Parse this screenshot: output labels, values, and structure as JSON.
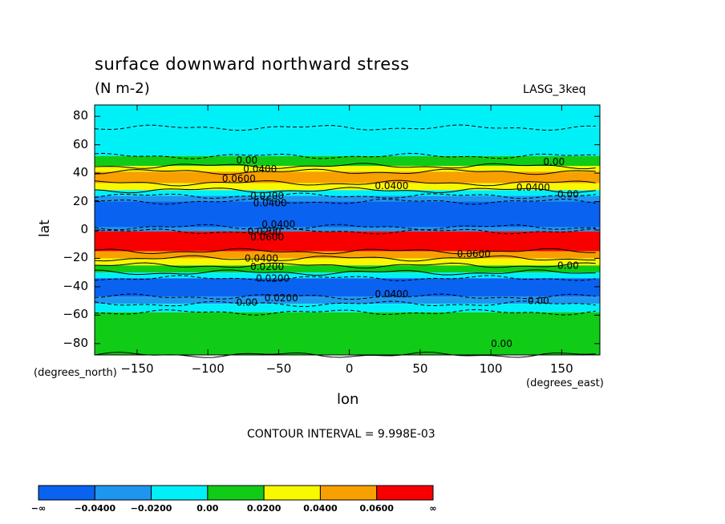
{
  "chart_data": {
    "type": "heatmap",
    "title": "surface downward northward stress",
    "units": "(N m-2)",
    "dataset": "LASG_3keq",
    "xlabel": "lon",
    "ylabel": "lat",
    "x_units": "(degrees_east)",
    "y_units": "(degrees_north)",
    "xlim": [
      -180,
      177
    ],
    "ylim": [
      -88,
      88
    ],
    "x_ticks": [
      -150,
      -100,
      -50,
      0,
      50,
      100,
      150
    ],
    "x_tick_labels": [
      "−150",
      "−100",
      "−50",
      "0",
      "50",
      "100",
      "150"
    ],
    "y_ticks": [
      80,
      60,
      40,
      20,
      0,
      -20,
      -40,
      -60,
      -80
    ],
    "y_tick_labels": [
      "80",
      "60",
      "40",
      "20",
      "0",
      "−20",
      "−40",
      "−60",
      "−80"
    ],
    "contour_interval_text": "CONTOUR INTERVAL = 9.998E-03",
    "colorbar": {
      "bounds": [
        "−∞",
        "−0.0400",
        "−0.0200",
        "0.00",
        "0.0200",
        "0.0400",
        "0.0600",
        "∞"
      ],
      "colors": [
        "#0a62f0",
        "#1e96f0",
        "#00f0f8",
        "#10cc16",
        "#f8f800",
        "#f8a000",
        "#f80000"
      ]
    },
    "zonal_bands": [
      {
        "lat": [
          72,
          88
        ],
        "class": "-0.02..0.00"
      },
      {
        "lat": [
          52,
          72
        ],
        "class": "-0.02..0.00"
      },
      {
        "lat": [
          45,
          52
        ],
        "class": "0.00..0.02"
      },
      {
        "lat": [
          41,
          45
        ],
        "class": "0.02..0.04"
      },
      {
        "lat": [
          33,
          41
        ],
        "class": "0.04..0.06"
      },
      {
        "lat": [
          28,
          33
        ],
        "class": "0.02..0.04"
      },
      {
        "lat": [
          24,
          28
        ],
        "class": "-0.02..0.00"
      },
      {
        "lat": [
          20,
          24
        ],
        "class": "-0.04..-0.02"
      },
      {
        "lat": [
          2,
          20
        ],
        "class": "<-0.04"
      },
      {
        "lat": [
          -1,
          2
        ],
        "class": "-0.04..-0.02"
      },
      {
        "lat": [
          -15,
          -1
        ],
        "class": ">0.06"
      },
      {
        "lat": [
          -20,
          -15
        ],
        "class": "0.04..0.06"
      },
      {
        "lat": [
          -25,
          -20
        ],
        "class": "0.02..0.04"
      },
      {
        "lat": [
          -30,
          -25
        ],
        "class": "0.00..0.02"
      },
      {
        "lat": [
          -34,
          -30
        ],
        "class": "-0.02..0.00"
      },
      {
        "lat": [
          -47,
          -34
        ],
        "class": "<-0.04"
      },
      {
        "lat": [
          -52,
          -47
        ],
        "class": "-0.04..-0.02"
      },
      {
        "lat": [
          -58,
          -52
        ],
        "class": "-0.02..0.00"
      },
      {
        "lat": [
          -88,
          -58
        ],
        "class": "0.00..0.02"
      }
    ],
    "contour_labels": [
      {
        "lon": -80,
        "lat": 49,
        "text": "0.00"
      },
      {
        "lon": 137,
        "lat": 48,
        "text": "0.00"
      },
      {
        "lon": -75,
        "lat": 43,
        "text": "0.0400"
      },
      {
        "lon": -90,
        "lat": 36,
        "text": "0.0600"
      },
      {
        "lon": 18,
        "lat": 31,
        "text": "0.0400"
      },
      {
        "lon": 118,
        "lat": 30,
        "text": "0.0400"
      },
      {
        "lon": 147,
        "lat": 25,
        "text": "0.00"
      },
      {
        "lon": -70,
        "lat": 24,
        "text": "0.0200"
      },
      {
        "lon": -68,
        "lat": 19,
        "text": "0.0400"
      },
      {
        "lon": -62,
        "lat": 4,
        "text": "0.0400"
      },
      {
        "lon": -72,
        "lat": -1,
        "text": "0.0200"
      },
      {
        "lon": -70,
        "lat": -5,
        "text": "0.0600"
      },
      {
        "lon": 76,
        "lat": -17,
        "text": "0.0600"
      },
      {
        "lon": -74,
        "lat": -20,
        "text": "0.0400"
      },
      {
        "lon": -70,
        "lat": -26,
        "text": "0.0200"
      },
      {
        "lon": 147,
        "lat": -25,
        "text": "0.00"
      },
      {
        "lon": -66,
        "lat": -34,
        "text": "0.0200"
      },
      {
        "lon": 18,
        "lat": -45,
        "text": "0.0400"
      },
      {
        "lon": -60,
        "lat": -48,
        "text": "0.0200"
      },
      {
        "lon": -80,
        "lat": -51,
        "text": "0.00"
      },
      {
        "lon": 126,
        "lat": -50,
        "text": "0.00"
      },
      {
        "lon": 100,
        "lat": -80,
        "text": "0.00"
      }
    ]
  }
}
